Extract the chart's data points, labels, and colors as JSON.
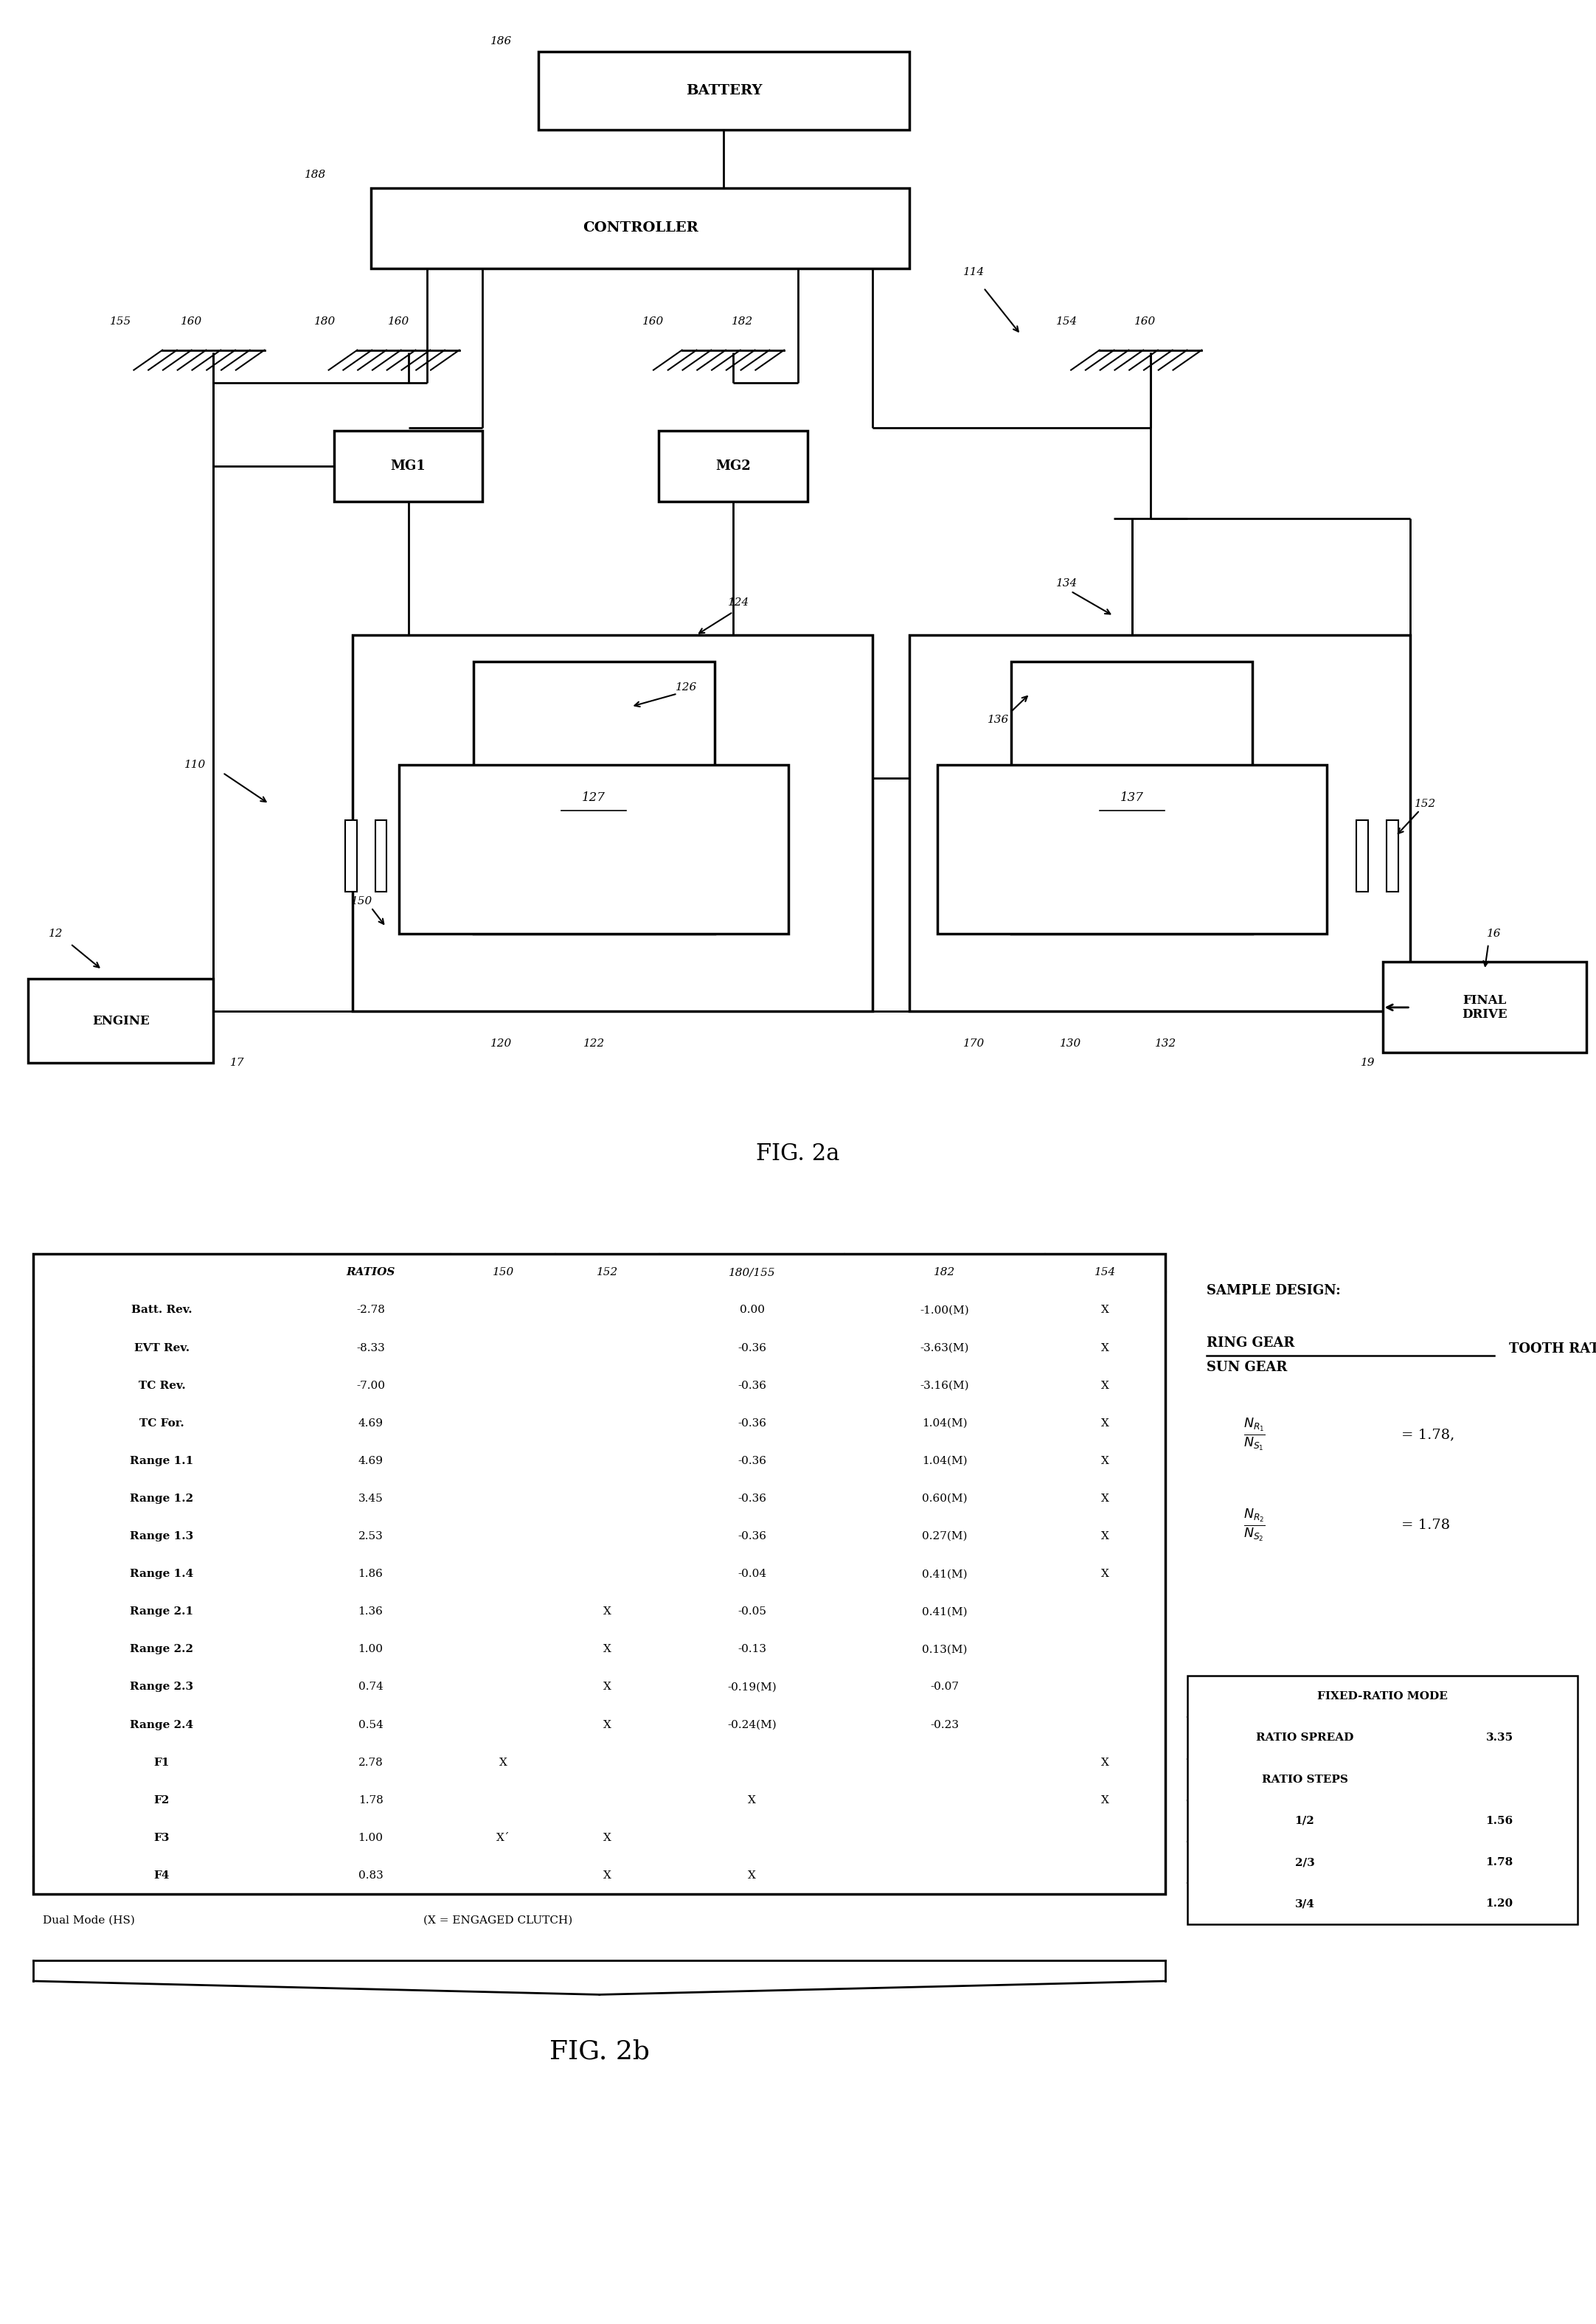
{
  "bg_color": "#ffffff",
  "fig_width": 21.64,
  "fig_height": 31.51,
  "table_rows": [
    [
      "",
      "RATIOS",
      "150",
      "152",
      "180/155",
      "182",
      "154"
    ],
    [
      "Batt. Rev.",
      "-2.78",
      "",
      "",
      "0.00",
      "-1.00(M)",
      "X"
    ],
    [
      "EVT Rev.",
      "-8.33",
      "",
      "",
      "-0.36",
      "-3.63(M)",
      "X"
    ],
    [
      "TC Rev.",
      "-7.00",
      "",
      "",
      "-0.36",
      "-3.16(M)",
      "X"
    ],
    [
      "TC For.",
      "4.69",
      "",
      "",
      "-0.36",
      "1.04(M)",
      "X"
    ],
    [
      "Range 1.1",
      "4.69",
      "",
      "",
      "-0.36",
      "1.04(M)",
      "X"
    ],
    [
      "Range 1.2",
      "3.45",
      "",
      "",
      "-0.36",
      "0.60(M)",
      "X"
    ],
    [
      "Range 1.3",
      "2.53",
      "",
      "",
      "-0.36",
      "0.27(M)",
      "X"
    ],
    [
      "Range 1.4",
      "1.86",
      "",
      "",
      "-0.04",
      "0.41(M)",
      "X"
    ],
    [
      "Range 2.1",
      "1.36",
      "",
      "X",
      "-0.05",
      "0.41(M)",
      ""
    ],
    [
      "Range 2.2",
      "1.00",
      "",
      "X",
      "-0.13",
      "0.13(M)",
      ""
    ],
    [
      "Range 2.3",
      "0.74",
      "",
      "X",
      "-0.19(M)",
      "-0.07",
      ""
    ],
    [
      "Range 2.4",
      "0.54",
      "",
      "X",
      "-0.24(M)",
      "-0.23",
      ""
    ],
    [
      "F1",
      "2.78",
      "X",
      "",
      "",
      "",
      "X"
    ],
    [
      "F2",
      "1.78",
      "",
      "",
      "X",
      "",
      "X"
    ],
    [
      "F3",
      "1.00",
      "X´",
      "X",
      "",
      "",
      ""
    ],
    [
      "F4",
      "0.83",
      "",
      "X",
      "X",
      "",
      ""
    ]
  ],
  "fixed_ratio_table": {
    "title": "FIXED-RATIO MODE",
    "rows": [
      [
        "RATIO SPREAD",
        "3.35"
      ],
      [
        "RATIO STEPS",
        ""
      ],
      [
        "1/2",
        "1.56"
      ],
      [
        "2/3",
        "1.78"
      ],
      [
        "3/4",
        "1.20"
      ]
    ]
  },
  "dual_mode_text": "Dual Mode (HS)",
  "engaged_clutch_text": "(X = ENGAGED CLUTCH)",
  "fig2a_label": "FIG. 2a",
  "fig2b_label": "FIG. 2b"
}
